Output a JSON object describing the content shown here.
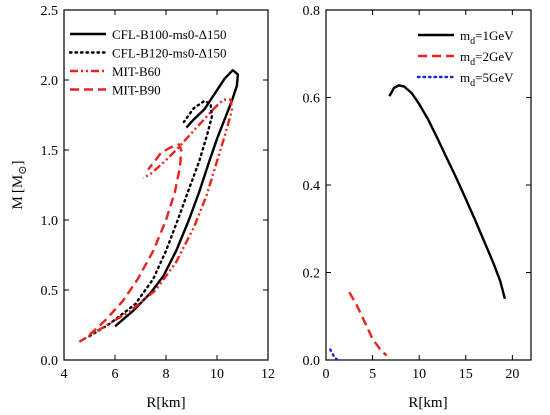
{
  "chart_data": [
    {
      "type": "line",
      "xlabel": "R[km]",
      "ylabel_main": "M",
      "ylabel_unit_left": "[M",
      "ylabel_unit_sub": "⊙",
      "ylabel_unit_right": "]",
      "xlim": [
        4,
        12
      ],
      "ylim": [
        0,
        2.5
      ],
      "xticks": [
        "4",
        "6",
        "8",
        "10",
        "12"
      ],
      "yticks": [
        "0.0",
        "0.5",
        "1.0",
        "1.5",
        "2.0",
        "2.5"
      ],
      "legend_position": "top-left",
      "series": [
        {
          "name": "CFL-B100-ms0-Δ150",
          "color": "#000000",
          "style": "solid",
          "points": [
            [
              6.0,
              0.24
            ],
            [
              6.7,
              0.35
            ],
            [
              7.4,
              0.48
            ],
            [
              7.9,
              0.6
            ],
            [
              8.4,
              0.78
            ],
            [
              8.9,
              1.0
            ],
            [
              9.3,
              1.2
            ],
            [
              9.7,
              1.42
            ],
            [
              10.0,
              1.58
            ],
            [
              10.3,
              1.72
            ],
            [
              10.6,
              1.86
            ],
            [
              10.78,
              1.96
            ],
            [
              10.82,
              2.04
            ],
            [
              10.62,
              2.07
            ],
            [
              10.3,
              2.01
            ],
            [
              9.9,
              1.9
            ],
            [
              9.5,
              1.79
            ],
            [
              9.1,
              1.72
            ],
            [
              8.8,
              1.66
            ]
          ]
        },
        {
          "name": "CFL-B120-ms0-Δ150",
          "color": "#000000",
          "style": "dotted",
          "points": [
            [
              5.0,
              0.17
            ],
            [
              5.8,
              0.26
            ],
            [
              6.8,
              0.4
            ],
            [
              7.5,
              0.58
            ],
            [
              8.0,
              0.78
            ],
            [
              8.5,
              1.02
            ],
            [
              8.9,
              1.22
            ],
            [
              9.3,
              1.42
            ],
            [
              9.6,
              1.6
            ],
            [
              9.8,
              1.74
            ],
            [
              9.75,
              1.83
            ],
            [
              9.5,
              1.85
            ],
            [
              9.1,
              1.8
            ],
            [
              8.7,
              1.7
            ]
          ]
        },
        {
          "name": "MIT-B60",
          "color": "#e8231e",
          "style": "dashdotdot",
          "points": [
            [
              4.6,
              0.13
            ],
            [
              5.6,
              0.24
            ],
            [
              6.6,
              0.35
            ],
            [
              7.6,
              0.5
            ],
            [
              8.4,
              0.7
            ],
            [
              9.1,
              0.95
            ],
            [
              9.6,
              1.18
            ],
            [
              10.0,
              1.42
            ],
            [
              10.3,
              1.6
            ],
            [
              10.58,
              1.78
            ],
            [
              10.55,
              1.86
            ],
            [
              10.25,
              1.86
            ],
            [
              9.9,
              1.8
            ],
            [
              9.4,
              1.7
            ],
            [
              8.9,
              1.6
            ],
            [
              8.4,
              1.5
            ],
            [
              7.9,
              1.41
            ],
            [
              7.4,
              1.33
            ],
            [
              7.1,
              1.3
            ]
          ]
        },
        {
          "name": "MIT-B90",
          "color": "#e8231e",
          "style": "dashed",
          "points": [
            [
              5.0,
              0.18
            ],
            [
              5.6,
              0.28
            ],
            [
              6.3,
              0.42
            ],
            [
              6.9,
              0.58
            ],
            [
              7.5,
              0.78
            ],
            [
              8.0,
              1.0
            ],
            [
              8.35,
              1.2
            ],
            [
              8.55,
              1.38
            ],
            [
              8.6,
              1.5
            ],
            [
              8.5,
              1.54
            ],
            [
              8.2,
              1.52
            ],
            [
              7.8,
              1.48
            ],
            [
              7.6,
              1.43
            ],
            [
              7.3,
              1.36
            ]
          ]
        }
      ]
    },
    {
      "type": "line",
      "xlabel": "R[km]",
      "xlim": [
        0,
        22
      ],
      "ylim": [
        0,
        0.8
      ],
      "xticks": [
        "0",
        "5",
        "10",
        "15",
        "20"
      ],
      "yticks": [
        "0.0",
        "0.2",
        "0.4",
        "0.6",
        "0.8"
      ],
      "legend_position": "top-right",
      "series": [
        {
          "name": "m",
          "name_sub": "d",
          "name_rest": "=1GeV",
          "color": "#000000",
          "style": "solid",
          "points": [
            [
              6.8,
              0.603
            ],
            [
              7.3,
              0.622
            ],
            [
              7.8,
              0.628
            ],
            [
              8.4,
              0.625
            ],
            [
              9.2,
              0.61
            ],
            [
              10.0,
              0.585
            ],
            [
              11.0,
              0.548
            ],
            [
              12.0,
              0.505
            ],
            [
              13.0,
              0.46
            ],
            [
              14.0,
              0.415
            ],
            [
              15.0,
              0.368
            ],
            [
              16.0,
              0.32
            ],
            [
              17.0,
              0.27
            ],
            [
              18.0,
              0.22
            ],
            [
              18.7,
              0.18
            ],
            [
              19.2,
              0.14
            ]
          ]
        },
        {
          "name": "m",
          "name_sub": "d",
          "name_rest": "=2GeV",
          "color": "#e8231e",
          "style": "dashed",
          "points": [
            [
              2.5,
              0.155
            ],
            [
              3.3,
              0.125
            ],
            [
              4.2,
              0.085
            ],
            [
              5.0,
              0.048
            ],
            [
              5.8,
              0.025
            ],
            [
              6.5,
              0.01
            ]
          ]
        },
        {
          "name": "m",
          "name_sub": "d",
          "name_rest": "=5GeV",
          "color": "#1f1fd6",
          "style": "dotted",
          "points": [
            [
              0.45,
              0.024
            ],
            [
              0.6,
              0.018
            ],
            [
              0.8,
              0.01
            ],
            [
              1.0,
              0.004
            ],
            [
              1.2,
              0.001
            ]
          ]
        }
      ]
    }
  ]
}
